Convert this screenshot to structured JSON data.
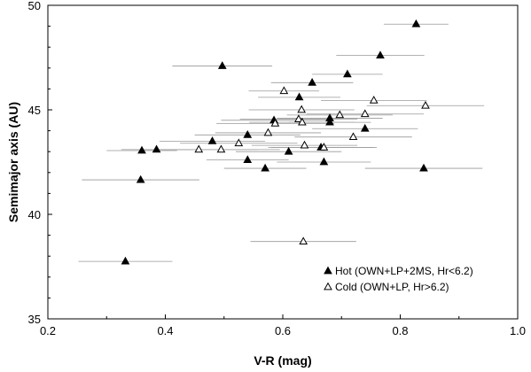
{
  "chart_data": {
    "type": "scatter",
    "xlabel": "V-R (mag)",
    "ylabel": "Semimajor axis (AU)",
    "xlim": [
      0.2,
      1.0
    ],
    "ylim": [
      35,
      50
    ],
    "xticks": [
      0.2,
      0.4,
      0.6,
      0.8,
      1.0
    ],
    "xtick_labels": [
      "0.2",
      "0.4",
      "0.6",
      "0.8",
      "1.0"
    ],
    "yticks": [
      35,
      40,
      45,
      50
    ],
    "ytick_labels": [
      "35",
      "40",
      "45",
      "50"
    ],
    "grid": false,
    "legend_position": "bottom-right",
    "colors": {
      "hot": "#000000",
      "cold": "#ffffff",
      "errorbar": "#999999"
    },
    "series": [
      {
        "name": "Hot (OWN+LP+2MS, Hr<6.2)",
        "marker": "filled-triangle",
        "points": [
          {
            "x": 0.827,
            "y": 49.1,
            "xerr": 0.055
          },
          {
            "x": 0.497,
            "y": 47.1,
            "xerr": 0.085
          },
          {
            "x": 0.766,
            "y": 47.6,
            "xerr": 0.075
          },
          {
            "x": 0.71,
            "y": 46.7,
            "xerr": 0.06
          },
          {
            "x": 0.65,
            "y": 46.3,
            "xerr": 0.07
          },
          {
            "x": 0.628,
            "y": 45.6,
            "xerr": 0.07
          },
          {
            "x": 0.585,
            "y": 44.5,
            "xerr": 0.09
          },
          {
            "x": 0.68,
            "y": 44.6,
            "xerr": 0.09
          },
          {
            "x": 0.68,
            "y": 44.4,
            "xerr": 0.07
          },
          {
            "x": 0.74,
            "y": 44.1,
            "xerr": 0.09
          },
          {
            "x": 0.54,
            "y": 43.8,
            "xerr": 0.09
          },
          {
            "x": 0.48,
            "y": 43.5,
            "xerr": 0.09
          },
          {
            "x": 0.36,
            "y": 43.05,
            "xerr": 0.06
          },
          {
            "x": 0.385,
            "y": 43.1,
            "xerr": 0.06
          },
          {
            "x": 0.61,
            "y": 43.0,
            "xerr": 0.09
          },
          {
            "x": 0.665,
            "y": 43.2,
            "xerr": 0.09
          },
          {
            "x": 0.54,
            "y": 42.6,
            "xerr": 0.07
          },
          {
            "x": 0.67,
            "y": 42.5,
            "xerr": 0.08
          },
          {
            "x": 0.57,
            "y": 42.2,
            "xerr": 0.07
          },
          {
            "x": 0.84,
            "y": 42.2,
            "xerr": 0.1
          },
          {
            "x": 0.358,
            "y": 41.65,
            "xerr": 0.1
          },
          {
            "x": 0.332,
            "y": 37.75,
            "xerr": 0.08
          }
        ]
      },
      {
        "name": "Cold (OWN+LP, Hr>6.2)",
        "marker": "open-triangle",
        "points": [
          {
            "x": 0.602,
            "y": 45.9,
            "xerr": 0.06
          },
          {
            "x": 0.755,
            "y": 45.45,
            "xerr": 0.09
          },
          {
            "x": 0.843,
            "y": 45.2,
            "xerr": 0.1
          },
          {
            "x": 0.632,
            "y": 45.0,
            "xerr": 0.09
          },
          {
            "x": 0.697,
            "y": 44.75,
            "xerr": 0.09
          },
          {
            "x": 0.74,
            "y": 44.8,
            "xerr": 0.1
          },
          {
            "x": 0.627,
            "y": 44.55,
            "xerr": 0.1
          },
          {
            "x": 0.587,
            "y": 44.35,
            "xerr": 0.1
          },
          {
            "x": 0.633,
            "y": 44.4,
            "xerr": 0.09
          },
          {
            "x": 0.575,
            "y": 43.9,
            "xerr": 0.09
          },
          {
            "x": 0.72,
            "y": 43.7,
            "xerr": 0.1
          },
          {
            "x": 0.525,
            "y": 43.4,
            "xerr": 0.1
          },
          {
            "x": 0.637,
            "y": 43.3,
            "xerr": 0.09
          },
          {
            "x": 0.67,
            "y": 43.2,
            "xerr": 0.09
          },
          {
            "x": 0.457,
            "y": 43.1,
            "xerr": 0.1
          },
          {
            "x": 0.495,
            "y": 43.1,
            "xerr": 0.1
          },
          {
            "x": 0.635,
            "y": 38.7,
            "xerr": 0.09
          }
        ]
      }
    ]
  }
}
